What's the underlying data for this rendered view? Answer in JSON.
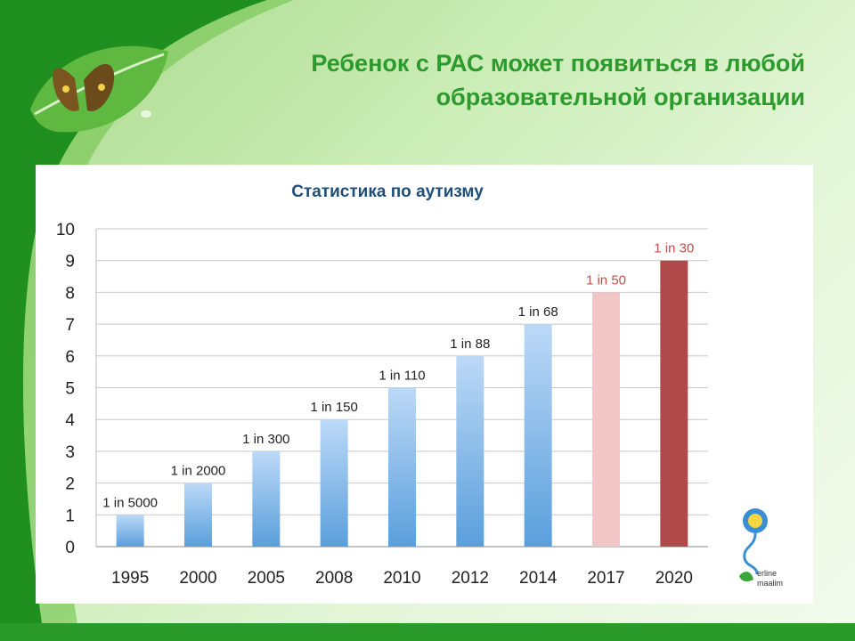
{
  "slide": {
    "title_line1": "Ребенок с РАС может появиться в любой",
    "title_line2": "образовательной организации"
  },
  "logo": {
    "line1": "erline",
    "line2": "maalim"
  },
  "colors": {
    "title": "#2d9a2d",
    "bar_blue_top": "#bcd9f7",
    "bar_blue_bottom": "#5a9fdc",
    "bar_2017": "#f0c6c6",
    "bar_2020": "#b04a4a",
    "label_red": "#c0504d",
    "chart_title": "#1f4e79"
  },
  "chart_data": {
    "type": "bar",
    "title": "Статистика по аутизму",
    "categories": [
      "1995",
      "2000",
      "2005",
      "2008",
      "2010",
      "2012",
      "2014",
      "2017",
      "2020"
    ],
    "values": [
      1,
      2,
      3,
      4,
      5,
      6,
      7,
      8,
      9
    ],
    "data_labels": [
      "1 in 5000",
      "1 in 2000",
      "1 in 300",
      "1 in 150",
      "1 in 110",
      "1 in 88",
      "1 in 68",
      "1 in 50",
      "1 in 30"
    ],
    "ylim": [
      0,
      10
    ],
    "yticks": [
      "0",
      "1",
      "2",
      "3",
      "4",
      "5",
      "6",
      "7",
      "8",
      "9",
      "10"
    ],
    "grid": true,
    "xlabel": "",
    "ylabel": ""
  }
}
